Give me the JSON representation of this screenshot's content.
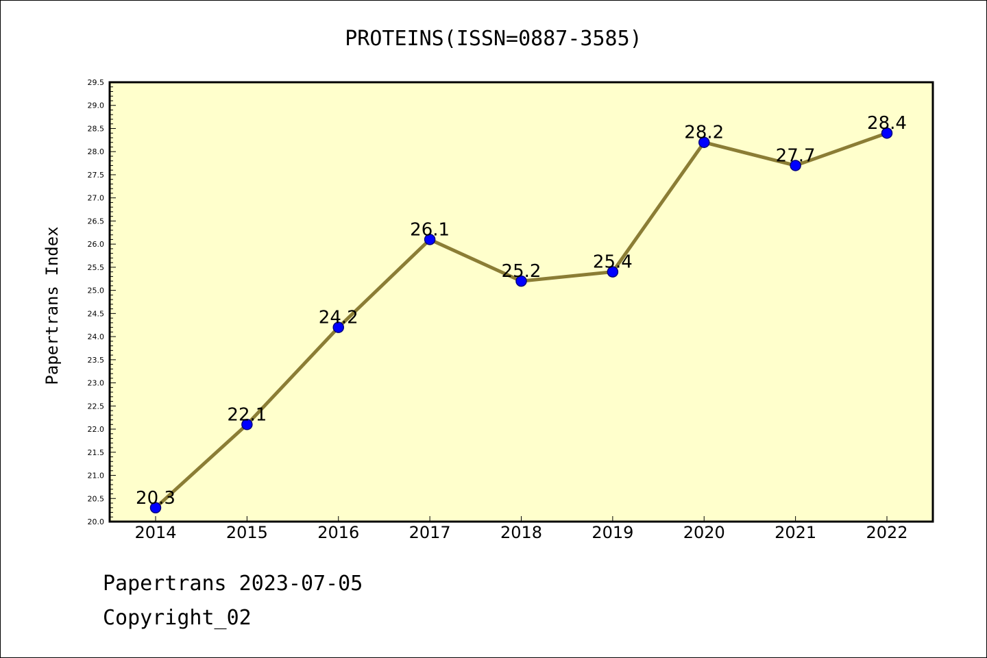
{
  "chart_data": {
    "type": "line",
    "title": "PROTEINS(ISSN=0887-3585)",
    "xlabel": "",
    "ylabel": "Papertrans Index",
    "categories": [
      "2014",
      "2015",
      "2016",
      "2017",
      "2018",
      "2019",
      "2020",
      "2021",
      "2022"
    ],
    "series": [
      {
        "values": [
          20.3,
          22.1,
          24.2,
          26.1,
          25.2,
          25.4,
          28.2,
          27.7,
          28.4
        ],
        "data_labels": [
          "20.3",
          "22.1",
          "24.2",
          "26.1",
          "25.2",
          "25.4",
          "28.2",
          "27.7",
          "28.4"
        ]
      }
    ],
    "ylim": [
      20.0,
      29.5
    ],
    "yticks": [
      "20.0",
      "20.5",
      "21.0",
      "21.5",
      "22.0",
      "22.5",
      "23.0",
      "23.5",
      "24.0",
      "24.5",
      "25.0",
      "25.5",
      "26.0",
      "26.5",
      "27.0",
      "27.5",
      "28.0",
      "28.5",
      "29.0",
      "29.5"
    ],
    "grid": false,
    "legend": "none",
    "colors": {
      "plot_background": "#ffffcc",
      "line": "#8b7d35",
      "marker_fill": "#0000ff",
      "marker_edge": "#000080"
    }
  },
  "footer": {
    "line1": "Papertrans 2023-07-05",
    "line2": "Copyright_02"
  }
}
